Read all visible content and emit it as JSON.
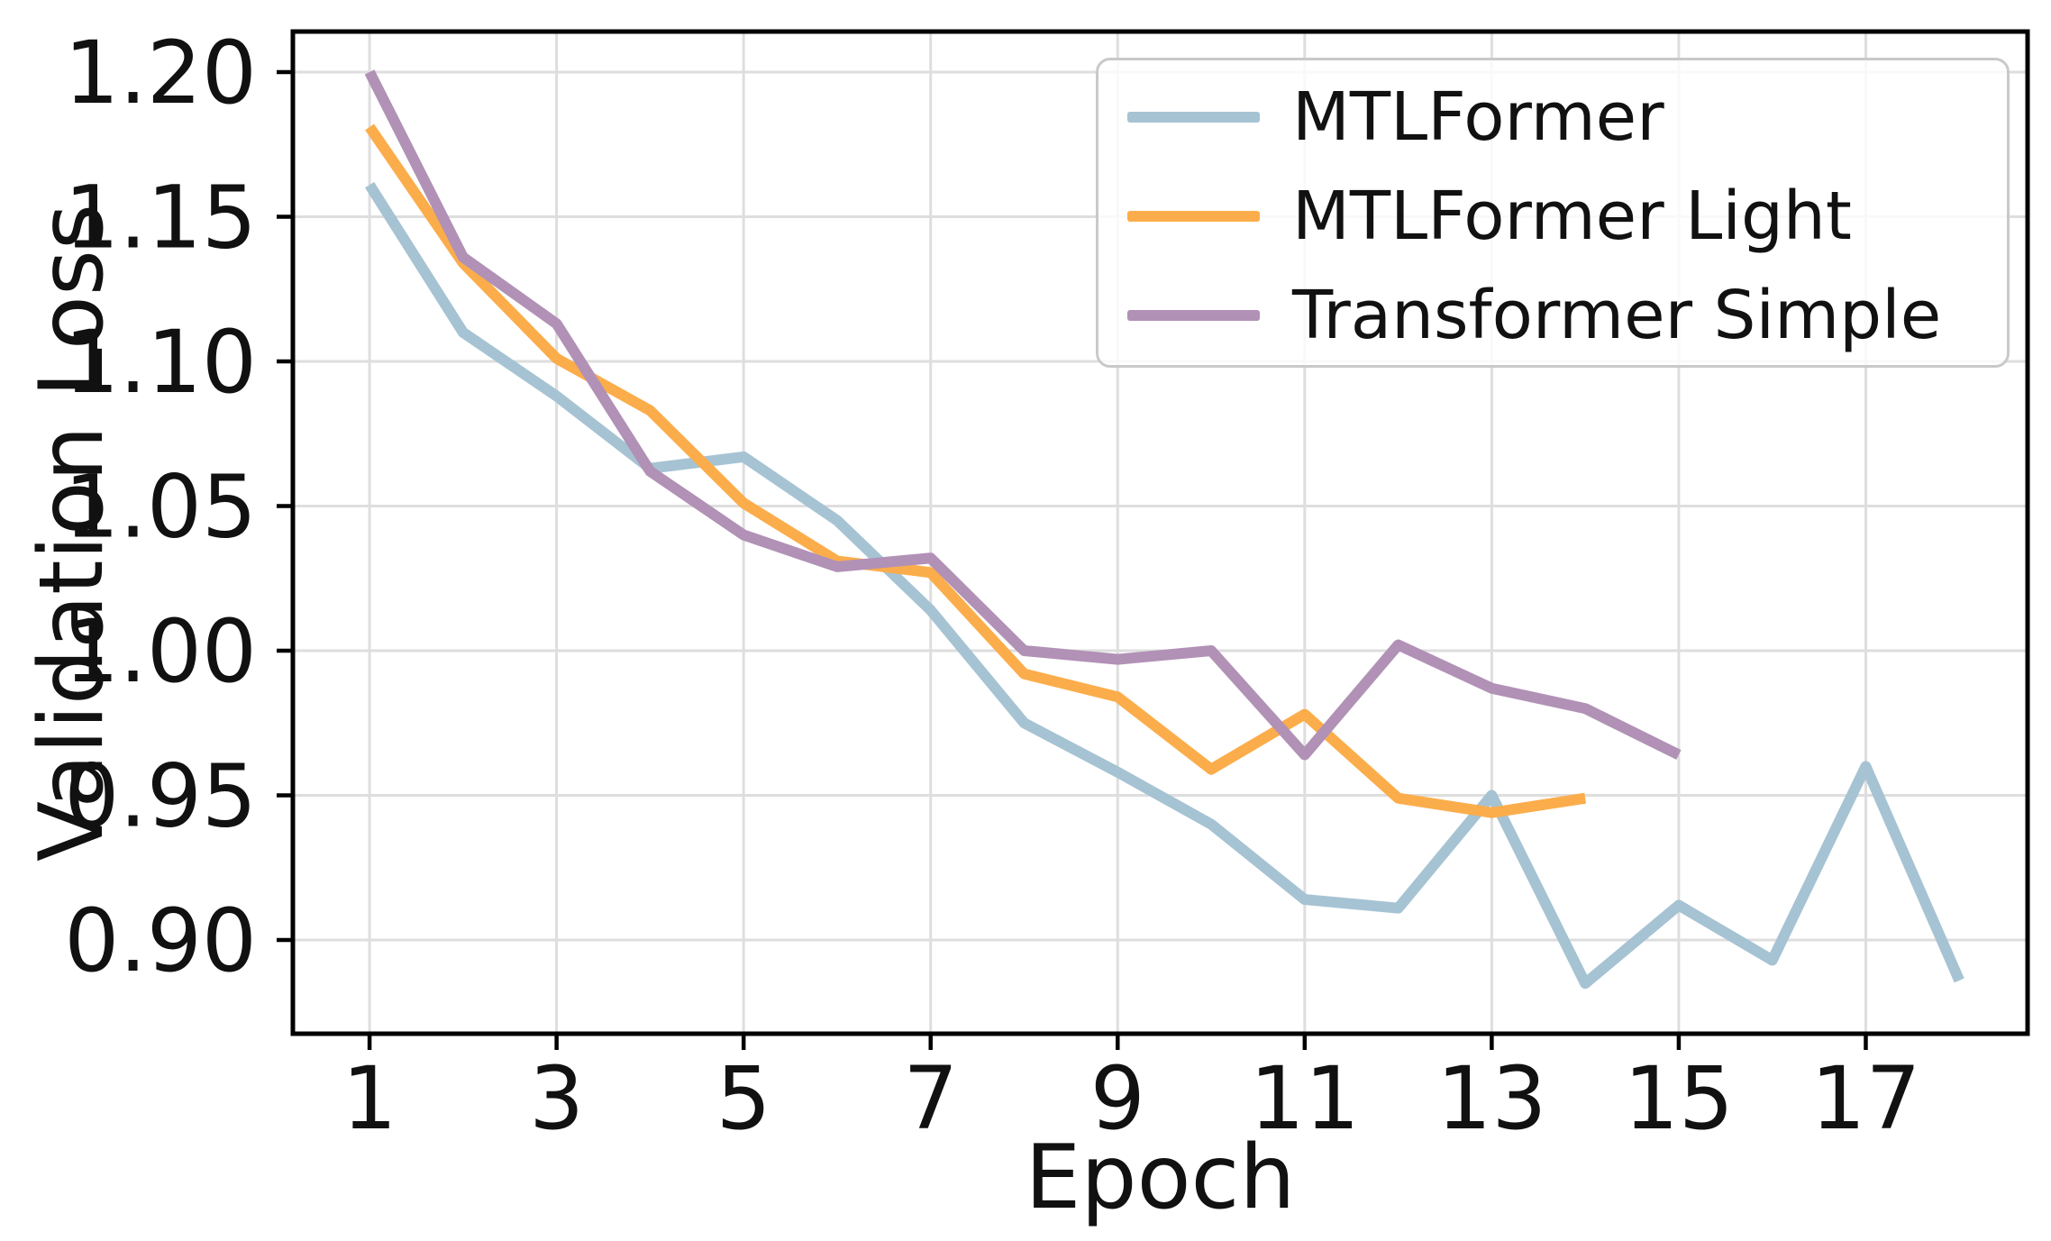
{
  "chart_data": {
    "type": "line",
    "title": "",
    "xlabel": "Epoch",
    "ylabel": "Validation Loss",
    "x_ticks": [
      1,
      3,
      5,
      7,
      9,
      11,
      13,
      15,
      17
    ],
    "y_ticks": [
      0.9,
      0.95,
      1.0,
      1.05,
      1.1,
      1.15,
      1.2
    ],
    "y_tick_labels": [
      "0.90",
      "0.95",
      "1.00",
      "1.05",
      "1.10",
      "1.15",
      "1.20"
    ],
    "xlim": [
      0.18,
      18.73
    ],
    "ylim": [
      0.8676,
      1.214
    ],
    "grid": true,
    "legend_position": "upper-right",
    "colors": {
      "grid": "#dedede",
      "spine": "#000000",
      "tick_text": "#111111"
    },
    "series": [
      {
        "name": "MTLFormer",
        "color": "#a6c3d3",
        "x": [
          1,
          2,
          3,
          4,
          5,
          6,
          7,
          8,
          9,
          10,
          11,
          12,
          13,
          14,
          15,
          16,
          17,
          18
        ],
        "values": [
          1.161,
          1.11,
          1.088,
          1.063,
          1.067,
          1.045,
          1.014,
          0.975,
          0.958,
          0.94,
          0.914,
          0.911,
          0.95,
          0.885,
          0.912,
          0.893,
          0.96,
          0.886
        ]
      },
      {
        "name": "MTLFormer Light",
        "color": "#fbad4b",
        "x": [
          1,
          2,
          3,
          4,
          5,
          6,
          7,
          8,
          9,
          10,
          11,
          12,
          13,
          14
        ],
        "values": [
          1.181,
          1.134,
          1.101,
          1.083,
          1.051,
          1.031,
          1.027,
          0.992,
          0.984,
          0.959,
          0.978,
          0.949,
          0.944,
          0.949
        ]
      },
      {
        "name": "Transformer Simple",
        "color": "#b191b6",
        "x": [
          1,
          2,
          3,
          4,
          5,
          6,
          7,
          8,
          9,
          10,
          11,
          12,
          13,
          14,
          15
        ],
        "values": [
          1.2,
          1.136,
          1.113,
          1.062,
          1.04,
          1.029,
          1.032,
          1.0,
          0.997,
          1.0,
          0.964,
          1.002,
          0.987,
          0.98,
          0.964
        ]
      }
    ]
  }
}
